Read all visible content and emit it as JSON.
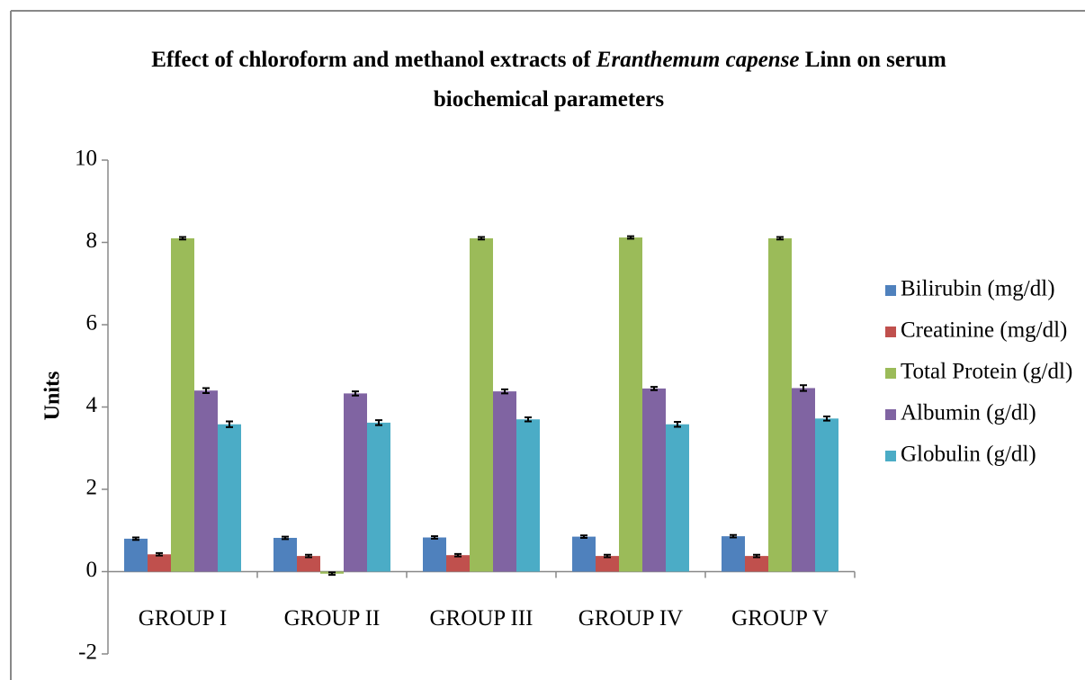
{
  "chart_data": {
    "type": "bar",
    "title": [
      "Effect of chloroform  and methanol extracts of ",
      "Eranthemum capense",
      " Linn on serum",
      "biochemical parameters"
    ],
    "title_italic": [
      false,
      true,
      false,
      false
    ],
    "ylabel": "Units",
    "categories": [
      "GROUP I",
      "GROUP II",
      "GROUP III",
      "GROUP IV",
      "GROUP V"
    ],
    "series": [
      {
        "name": "Bilirubin (mg/dl)",
        "color": "#4f81bd",
        "values": [
          0.8,
          0.82,
          0.83,
          0.85,
          0.86
        ],
        "errors": [
          0.03,
          0.03,
          0.03,
          0.03,
          0.03
        ]
      },
      {
        "name": "Creatinine (mg/dl)",
        "color": "#c0504d",
        "values": [
          0.42,
          0.38,
          0.4,
          0.38,
          0.38
        ],
        "errors": [
          0.03,
          0.03,
          0.03,
          0.03,
          0.03
        ]
      },
      {
        "name": "Total Protein (g/dl)",
        "color": "#9bbb59",
        "values": [
          8.1,
          -0.05,
          8.1,
          8.12,
          8.1
        ],
        "errors": [
          0.03,
          0.03,
          0.03,
          0.03,
          0.03
        ]
      },
      {
        "name": "Albumin (g/dl)",
        "color": "#8064a2",
        "values": [
          4.4,
          4.33,
          4.38,
          4.45,
          4.46
        ],
        "errors": [
          0.06,
          0.05,
          0.05,
          0.04,
          0.07
        ]
      },
      {
        "name": "Globulin (g/dl)",
        "color": "#4bacc6",
        "values": [
          3.58,
          3.62,
          3.7,
          3.58,
          3.72
        ],
        "errors": [
          0.07,
          0.06,
          0.05,
          0.06,
          0.05
        ]
      }
    ],
    "ylim": [
      -2,
      10
    ],
    "yticks": [
      -2,
      0,
      2,
      4,
      6,
      8,
      10
    ],
    "legend": "right"
  }
}
